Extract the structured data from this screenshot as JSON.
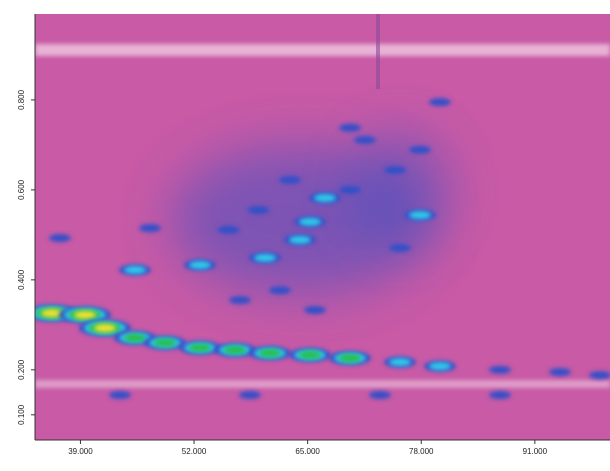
{
  "chart_data": {
    "type": "contour",
    "background": "#c85aa6",
    "level_colors": [
      "#3350c8",
      "#30c8e8",
      "#28c050",
      "#f0e030"
    ],
    "xlim": [
      33.8,
      99.6
    ],
    "ylim": [
      0.044,
      0.991
    ],
    "xticks": [
      {
        "value": 39,
        "label": "39.000"
      },
      {
        "value": 52,
        "label": "52.000"
      },
      {
        "value": 65,
        "label": "65.000"
      },
      {
        "value": 78,
        "label": "78.000"
      },
      {
        "value": 91,
        "label": "91.000"
      }
    ],
    "yticks": [
      {
        "value": 0.1,
        "label": "0.100"
      },
      {
        "value": 0.2,
        "label": "0.200"
      },
      {
        "value": 0.4,
        "label": "0.400"
      },
      {
        "value": 0.6,
        "label": "0.600"
      },
      {
        "value": 0.8,
        "label": "0.800"
      }
    ],
    "x": [
      35.75,
      39.52,
      41.81,
      45.24,
      48.68,
      52.68,
      56.69,
      60.69,
      65.27,
      69.85,
      75.57,
      80.14,
      87.01,
      93.88,
      98.45,
      43.53,
      58.4,
      73.28,
      87.01,
      52.68,
      45.24,
      60.12,
      64.12,
      65.27,
      66.98,
      77.86,
      36.66,
      46.96,
      55.94,
      59.37,
      62.98,
      69.85,
      71.56,
      75.0,
      77.86,
      61.83,
      57.26,
      65.84,
      75.57,
      69.85,
      80.14
    ],
    "y": [
      0.326,
      0.322,
      0.293,
      0.271,
      0.26,
      0.249,
      0.244,
      0.237,
      0.233,
      0.226,
      0.217,
      0.208,
      0.2,
      0.195,
      0.188,
      0.144,
      0.144,
      0.144,
      0.144,
      0.433,
      0.422,
      0.449,
      0.489,
      0.529,
      0.582,
      0.544,
      0.493,
      0.515,
      0.511,
      0.555,
      0.622,
      0.6,
      0.711,
      0.644,
      0.689,
      0.377,
      0.355,
      0.333,
      0.471,
      0.738,
      0.795
    ],
    "values": [
      4,
      4,
      4,
      3,
      3,
      3,
      3,
      3,
      3,
      3,
      2,
      2,
      1,
      1,
      1,
      1,
      1,
      1,
      1,
      2,
      2,
      2,
      2,
      2,
      2,
      2,
      1,
      1,
      1,
      1,
      1,
      1,
      1,
      1,
      1,
      1,
      1,
      1,
      1,
      1,
      1
    ]
  }
}
